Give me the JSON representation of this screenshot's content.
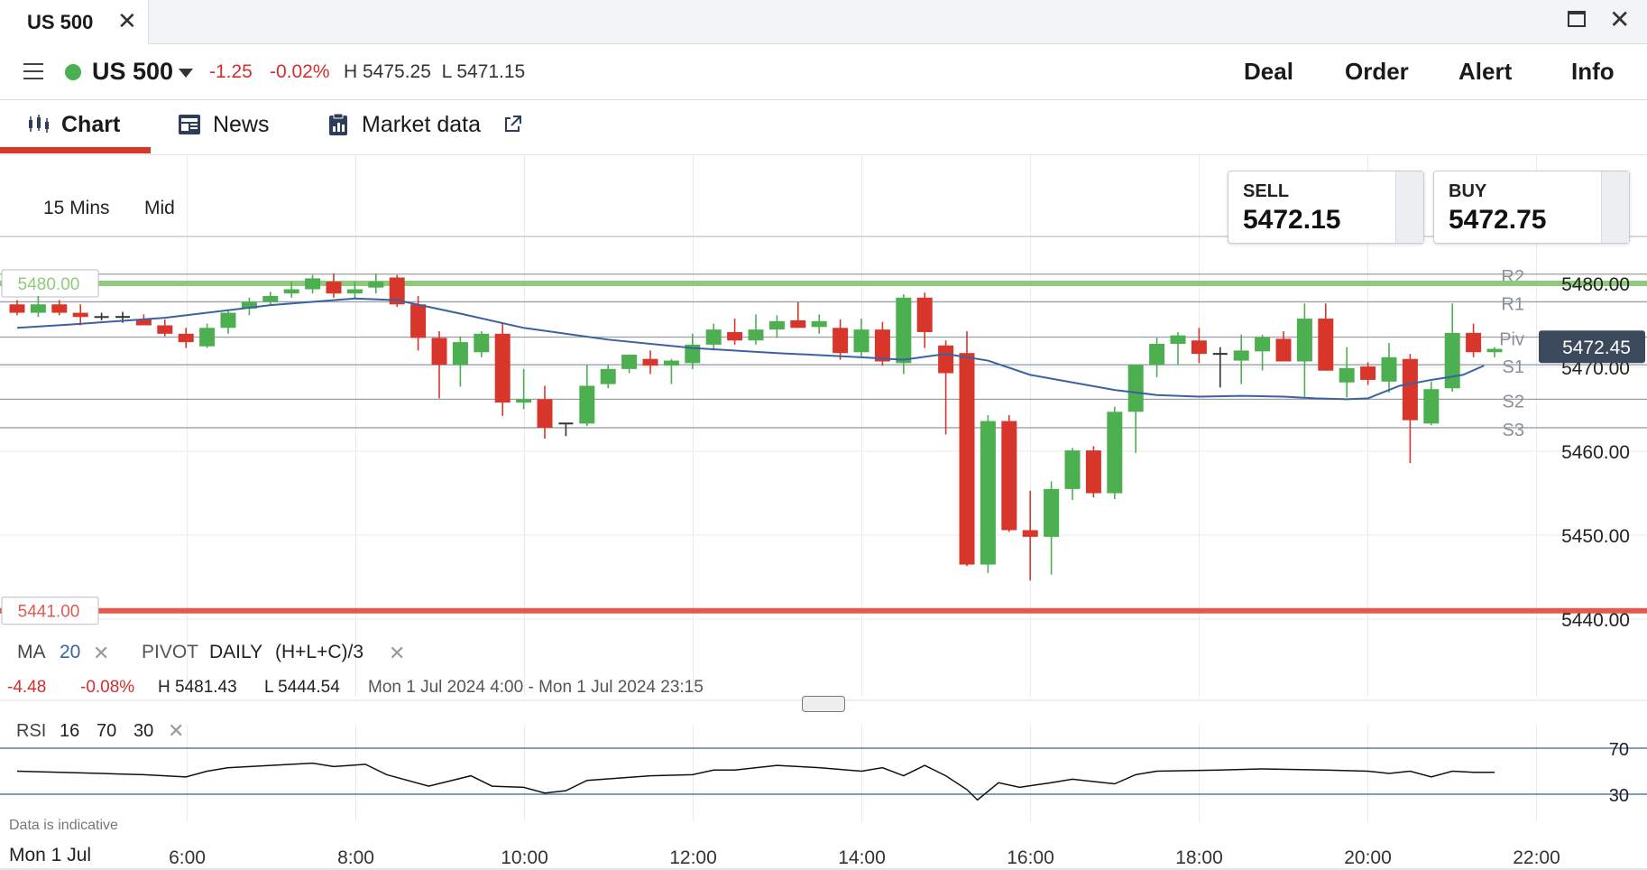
{
  "window": {
    "tab_title": "US 500",
    "close_glyph": "✕"
  },
  "header": {
    "market_name": "US 500",
    "change": "-1.25",
    "change_pct": "-0.02%",
    "high_low": "H 5475.25  L 5471.15",
    "buttons": [
      "Deal",
      "Order",
      "Alert",
      "Info"
    ],
    "status_color": "#4caf50"
  },
  "tabs": [
    {
      "label": "Chart",
      "icon": "candlestick-icon",
      "active": true
    },
    {
      "label": "News",
      "icon": "newspaper-icon"
    },
    {
      "label": "Market data",
      "icon": "clipboard-icon",
      "external_icon": "external-link-icon"
    }
  ],
  "quote": {
    "sell_label": "SELL",
    "sell_price": "5472.15",
    "buy_label": "BUY",
    "buy_price": "5472.75"
  },
  "chart_controls": {
    "timeframe": "15 Mins",
    "price_type": "Mid"
  },
  "indicators": {
    "ma_label": "MA",
    "ma_period": "20",
    "pivot_label": "PIVOT",
    "pivot_period": "DAILY",
    "pivot_formula": "(H+L+C)/3",
    "remove_glyph": "✕"
  },
  "stats": {
    "change": "-4.48",
    "change_pct": "-0.08%",
    "high": "H 5481.43",
    "low": "L 5444.54",
    "range": "Mon 1 Jul 2024 4:00 - Mon 1 Jul 2024 23:15"
  },
  "rsi": {
    "label": "RSI",
    "period": "16",
    "upper": "70",
    "lower": "30",
    "upper_label": "70",
    "lower_label": "30"
  },
  "footer": {
    "disclaimer": "Data is indicative",
    "date_label": "Mon 1 Jul"
  },
  "colors": {
    "up": "#4caf50",
    "down": "#d9362b",
    "ma": "#3b62a0",
    "alert_up": "#8fc97b",
    "alert_down": "#e05a50",
    "current_price_bg": "#3a4a5c"
  },
  "chart_data": {
    "type": "candlestick",
    "x_ticks": [
      "6:00",
      "8:00",
      "10:00",
      "12:00",
      "14:00",
      "16:00",
      "18:00",
      "20:00",
      "22:00"
    ],
    "y_ticks": [
      "5480.00",
      "5470.00",
      "5460.00",
      "5450.00",
      "5440.00"
    ],
    "y_range": [
      5437,
      5498
    ],
    "alert_levels": [
      {
        "label": "5480.00",
        "value": 5480
      },
      {
        "label": "5441.00",
        "value": 5441
      }
    ],
    "pivot_levels": [
      {
        "name": "R2",
        "value": 5481.1
      },
      {
        "name": "R1",
        "value": 5477.8
      },
      {
        "name": "Piv",
        "value": 5473.6
      },
      {
        "name": "S1",
        "value": 5470.3
      },
      {
        "name": "S2",
        "value": 5466.2
      },
      {
        "name": "S3",
        "value": 5462.8
      }
    ],
    "current_price": {
      "label": "5472.45",
      "value": 5472.45
    },
    "candles": [
      [
        5477.5,
        5478,
        5476.2,
        5476.5
      ],
      [
        5476.5,
        5478.5,
        5476,
        5477.5
      ],
      [
        5477.5,
        5478,
        5476.2,
        5476.5
      ],
      [
        5476.5,
        5477.5,
        5475,
        5476
      ],
      [
        5476,
        5476.5,
        5475.6,
        5476
      ],
      [
        5476,
        5476.6,
        5475.3,
        5476
      ],
      [
        5475.7,
        5476.3,
        5475,
        5475
      ],
      [
        5475,
        5475.7,
        5473.7,
        5474
      ],
      [
        5474,
        5474.7,
        5472.3,
        5473
      ],
      [
        5472.5,
        5475.2,
        5472.3,
        5474.7
      ],
      [
        5474.7,
        5476.8,
        5474,
        5476.5
      ],
      [
        5477,
        5478.3,
        5476.2,
        5477.8
      ],
      [
        5477.8,
        5479,
        5477.3,
        5478.5
      ],
      [
        5478.8,
        5480.2,
        5478.3,
        5479.3
      ],
      [
        5479.3,
        5481,
        5478.8,
        5480.6
      ],
      [
        5480.2,
        5481.2,
        5478.3,
        5478.8
      ],
      [
        5478.8,
        5480.2,
        5478.2,
        5479.3
      ],
      [
        5479.5,
        5481.2,
        5478.8,
        5480.2
      ],
      [
        5480.7,
        5481,
        5477.2,
        5477.5
      ],
      [
        5477.5,
        5478.5,
        5472,
        5473.5
      ],
      [
        5473.5,
        5474.3,
        5466.3,
        5470.3
      ],
      [
        5470.3,
        5473.7,
        5467.7,
        5473
      ],
      [
        5471.8,
        5474.3,
        5471.2,
        5474
      ],
      [
        5474,
        5475.2,
        5464.2,
        5465.8
      ],
      [
        5465.8,
        5469.8,
        5465,
        5466.2
      ],
      [
        5466.2,
        5467.8,
        5461.5,
        5462.8
      ],
      [
        5463.3,
        5463.3,
        5461.8,
        5463.3
      ],
      [
        5463.3,
        5470.3,
        5463,
        5467.8
      ],
      [
        5468,
        5470.3,
        5467.5,
        5469.8
      ],
      [
        5469.8,
        5471.5,
        5469.3,
        5471.5
      ],
      [
        5471,
        5472,
        5469.2,
        5470.2
      ],
      [
        5470.2,
        5471,
        5468,
        5470.8
      ],
      [
        5470.5,
        5474,
        5469.8,
        5472.7
      ],
      [
        5472.7,
        5475.2,
        5472,
        5474.5
      ],
      [
        5474.2,
        5475.8,
        5472.7,
        5473.2
      ],
      [
        5473.2,
        5476.3,
        5472.7,
        5474.5
      ],
      [
        5474.5,
        5476.2,
        5473.5,
        5475.5
      ],
      [
        5475.6,
        5477.8,
        5474.7,
        5474.7
      ],
      [
        5474.8,
        5476.3,
        5474,
        5475.5
      ],
      [
        5474.7,
        5475.7,
        5470.9,
        5471.7
      ],
      [
        5471.8,
        5475.8,
        5471.3,
        5474.5
      ],
      [
        5474.5,
        5475.4,
        5470.2,
        5470.7
      ],
      [
        5470.5,
        5478.7,
        5469.2,
        5478.3
      ],
      [
        5478.3,
        5478.9,
        5472.3,
        5474.2
      ],
      [
        5472.6,
        5473.2,
        5462,
        5469.3
      ],
      [
        5471.7,
        5474.3,
        5446.3,
        5446.5
      ],
      [
        5446.5,
        5464.3,
        5445.5,
        5463.6
      ],
      [
        5463.6,
        5464.3,
        5450.4,
        5450.6
      ],
      [
        5450.6,
        5455.3,
        5444.6,
        5449.8
      ],
      [
        5449.8,
        5456.4,
        5445.3,
        5455.5
      ],
      [
        5455.5,
        5460.4,
        5454.2,
        5460.1
      ],
      [
        5460.1,
        5460.6,
        5454.5,
        5455
      ],
      [
        5455,
        5465.3,
        5454.3,
        5464.7
      ],
      [
        5464.7,
        5469.9,
        5459.8,
        5470.3
      ],
      [
        5470.3,
        5473.5,
        5468.8,
        5472.8
      ],
      [
        5472.8,
        5474.2,
        5470.3,
        5473.8
      ],
      [
        5473.2,
        5474.7,
        5470.5,
        5471.6
      ],
      [
        5471.6,
        5472.4,
        5467.6,
        5471.7
      ],
      [
        5470.8,
        5473.9,
        5468,
        5472
      ],
      [
        5471.9,
        5473.9,
        5469.6,
        5473.6
      ],
      [
        5473.4,
        5474.3,
        5470.8,
        5470.7
      ],
      [
        5470.7,
        5477.6,
        5466.5,
        5475.8
      ],
      [
        5475.8,
        5477.6,
        5469.6,
        5469.6
      ],
      [
        5468.2,
        5472.4,
        5466.4,
        5469.9
      ],
      [
        5470.1,
        5470.6,
        5467.9,
        5468.5
      ],
      [
        5468.3,
        5472.9,
        5467,
        5471.2
      ],
      [
        5471,
        5471.6,
        5458.6,
        5463.7
      ],
      [
        5463.3,
        5468.3,
        5463.1,
        5467.4
      ],
      [
        5467.5,
        5477.6,
        5467.1,
        5474.1
      ],
      [
        5474.1,
        5475.2,
        5471.2,
        5471.8
      ],
      [
        5471.8,
        5472.4,
        5471.2,
        5472.2
      ]
    ],
    "ma": [
      [
        0,
        5474.7
      ],
      [
        2.5,
        5475.1
      ],
      [
        7,
        5475.9
      ],
      [
        12,
        5477.4
      ],
      [
        16,
        5478.2
      ],
      [
        18,
        5478
      ],
      [
        21,
        5476.4
      ],
      [
        24,
        5474.7
      ],
      [
        28,
        5473.3
      ],
      [
        32,
        5472.3
      ],
      [
        36,
        5471.7
      ],
      [
        40,
        5471.2
      ],
      [
        42,
        5470.9
      ],
      [
        44,
        5471.6
      ],
      [
        46,
        5470.8
      ],
      [
        48,
        5469.1
      ],
      [
        50,
        5468.2
      ],
      [
        52,
        5467.3
      ],
      [
        54,
        5466.7
      ],
      [
        56,
        5466.5
      ],
      [
        58,
        5466.6
      ],
      [
        60,
        5466.5
      ],
      [
        61.5,
        5466.3
      ],
      [
        63,
        5466.2
      ],
      [
        64,
        5466.3
      ],
      [
        65.5,
        5467.8
      ],
      [
        67,
        5468.5
      ],
      [
        68.5,
        5469.1
      ],
      [
        69.5,
        5470.2
      ]
    ],
    "rsi": [
      [
        0,
        50
      ],
      [
        2,
        49
      ],
      [
        4,
        48
      ],
      [
        6,
        47
      ],
      [
        8,
        45
      ],
      [
        9,
        50
      ],
      [
        10,
        53
      ],
      [
        12,
        55
      ],
      [
        14,
        57
      ],
      [
        15,
        54
      ],
      [
        16.5,
        56
      ],
      [
        17.5,
        47
      ],
      [
        19.5,
        37
      ],
      [
        21.5,
        46
      ],
      [
        22.5,
        37
      ],
      [
        24,
        36
      ],
      [
        25,
        31
      ],
      [
        26,
        33
      ],
      [
        27,
        42
      ],
      [
        30,
        46
      ],
      [
        32,
        47
      ],
      [
        33,
        51
      ],
      [
        34,
        51
      ],
      [
        36,
        55
      ],
      [
        38,
        53
      ],
      [
        40,
        50
      ],
      [
        41,
        53
      ],
      [
        42,
        46
      ],
      [
        43,
        55
      ],
      [
        44,
        46
      ],
      [
        45,
        34
      ],
      [
        45.5,
        25
      ],
      [
        46.5,
        40
      ],
      [
        47.5,
        36
      ],
      [
        49,
        40
      ],
      [
        50,
        43
      ],
      [
        51,
        41
      ],
      [
        52,
        39
      ],
      [
        53,
        47
      ],
      [
        54,
        50
      ],
      [
        57,
        51
      ],
      [
        59,
        52
      ],
      [
        62,
        51
      ],
      [
        64,
        50
      ],
      [
        65,
        48
      ],
      [
        66,
        50
      ],
      [
        67,
        45
      ],
      [
        68,
        50
      ],
      [
        69,
        49
      ],
      [
        70,
        49
      ]
    ]
  }
}
